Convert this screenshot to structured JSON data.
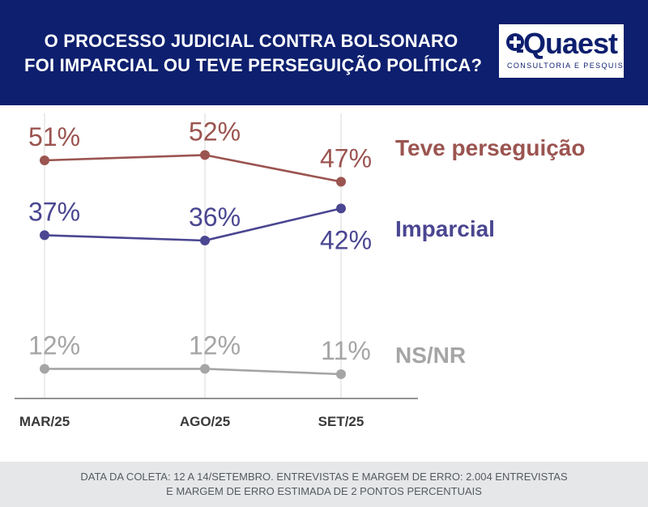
{
  "header": {
    "title_line1": "O PROCESSO JUDICIAL CONTRA BOLSONARO",
    "title_line2": "FOI IMPARCIAL OU TEVE PERSEGUIÇÃO POLÍTICA?",
    "bg_color": "#0d1f6e"
  },
  "logo": {
    "name": "Quaest",
    "tagline": "CONSULTORIA E PESQUISA",
    "icon": "quaest-logo-icon"
  },
  "chart_data": {
    "type": "line",
    "title": "O PROCESSO JUDICIAL CONTRA BOLSONARO FOI IMPARCIAL OU TEVE PERSEGUIÇÃO POLÍTICA?",
    "xlabel": "",
    "ylabel": "",
    "categories": [
      "MAR/25",
      "AGO/25",
      "SET/25"
    ],
    "ylim": [
      0,
      60
    ],
    "grid": "vertical",
    "legend": "right (labels at line ends)",
    "series": [
      {
        "name": "Teve perseguição",
        "values": [
          51,
          52,
          47
        ],
        "labels": [
          "51%",
          "52%",
          "47%"
        ],
        "color": "#9b5450"
      },
      {
        "name": "Imparcial",
        "values": [
          37,
          36,
          42
        ],
        "labels": [
          "37%",
          "36%",
          "42%"
        ],
        "color": "#4a4691"
      },
      {
        "name": "NS/NR",
        "values": [
          12,
          12,
          11
        ],
        "labels": [
          "12%",
          "12%",
          "11%"
        ],
        "color": "#a5a5a5"
      }
    ]
  },
  "footer": {
    "line1": "DATA DA COLETA: 12 A 14/SETEMBRO. ENTREVISTAS E MARGEM DE ERRO: 2.004 ENTREVISTAS",
    "line2": "E MARGEM DE ERRO ESTIMADA DE 2 PONTOS PERCENTUAIS"
  }
}
